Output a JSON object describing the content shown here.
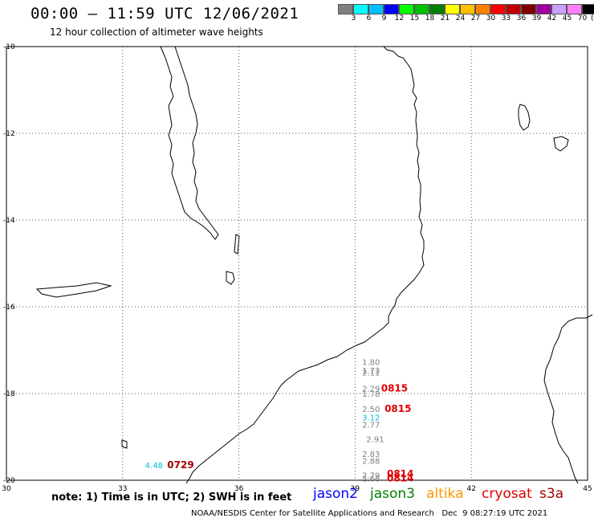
{
  "header": {
    "title": "00:00 – 11:59 UTC 12/06/2021",
    "subtitle": "12 hour collection of altimeter wave heights"
  },
  "scale": {
    "colors": [
      "#808080",
      "#00ffff",
      "#00c0ff",
      "#0000ff",
      "#00ff00",
      "#00c000",
      "#008000",
      "#ffff00",
      "#ffc000",
      "#ff8000",
      "#ff0000",
      "#c00000",
      "#800000",
      "#a000a0",
      "#c8a0ff",
      "#ff80ff",
      "#000000"
    ],
    "labels": [
      "3",
      "6",
      "9",
      "12",
      "15",
      "18",
      "21",
      "24",
      "27",
      "30",
      "33",
      "36",
      "39",
      "42",
      "45",
      "70"
    ],
    "unit": "(ft)"
  },
  "axes": {
    "lat_labels": [
      "-10",
      "-12",
      "-14",
      "-16",
      "-18",
      "-20"
    ],
    "lon_labels": [
      "30",
      "33",
      "36",
      "39",
      "42",
      "45"
    ]
  },
  "observations": [
    {
      "text": "1.80",
      "lon": 39.18,
      "lat": -17.27,
      "color": "#808080"
    },
    {
      "text": "1.73",
      "lon": 39.18,
      "lat": -17.46,
      "color": "#808080"
    },
    {
      "text": "2.11",
      "lon": 39.18,
      "lat": -17.51,
      "color": "#808080"
    },
    {
      "text": "2.29",
      "lon": 39.18,
      "lat": -17.88,
      "color": "#808080"
    },
    {
      "text": "1.78",
      "lon": 39.18,
      "lat": -18.0,
      "color": "#808080"
    },
    {
      "text": "2.50",
      "lon": 39.18,
      "lat": -18.35,
      "color": "#808080"
    },
    {
      "text": "3.12",
      "lon": 39.18,
      "lat": -18.55,
      "color": "#00c0d0"
    },
    {
      "text": "2.77",
      "lon": 39.18,
      "lat": -18.71,
      "color": "#808080"
    },
    {
      "text": "2.91",
      "lon": 39.29,
      "lat": -19.05,
      "color": "#808080"
    },
    {
      "text": "2.83",
      "lon": 39.18,
      "lat": -19.39,
      "color": "#808080"
    },
    {
      "text": "2.88",
      "lon": 39.18,
      "lat": -19.55,
      "color": "#808080"
    },
    {
      "text": "2.79",
      "lon": 39.18,
      "lat": -19.88,
      "color": "#808080"
    },
    {
      "text": "2.66",
      "lon": 39.18,
      "lat": -19.95,
      "color": "#808080"
    },
    {
      "text": "4.48",
      "lon": 33.58,
      "lat": -19.65,
      "color": "#00c0d0"
    }
  ],
  "passes": [
    {
      "text": "0815",
      "lon": 39.67,
      "lat": -17.88,
      "color": "#e00000"
    },
    {
      "text": "0815",
      "lon": 39.76,
      "lat": -18.35,
      "color": "#e00000"
    },
    {
      "text": "0814",
      "lon": 39.82,
      "lat": -19.85,
      "color": "#e00000"
    },
    {
      "text": "0814",
      "lon": 39.82,
      "lat": -19.95,
      "color": "#e00000"
    },
    {
      "text": "0729",
      "lon": 34.15,
      "lat": -19.65,
      "color": "#a00000"
    }
  ],
  "footer": {
    "note": "note: 1) Time is in UTC; 2) SWH is in feet",
    "satellites": [
      {
        "name": "jason2",
        "color": "#0000ff"
      },
      {
        "name": "jason3",
        "color": "#008000"
      },
      {
        "name": "altika",
        "color": "#ff9900"
      },
      {
        "name": "cryosat",
        "color": "#e00000"
      },
      {
        "name": "s3a",
        "color": "#a00000"
      }
    ],
    "credit": "NOAA/NESDIS Center for Satellite Applications and Research   Dec  9 08:27:19 UTC 2021"
  }
}
